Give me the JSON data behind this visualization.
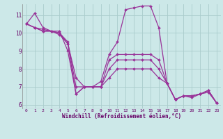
{
  "xlabel": "Windchill (Refroidissement éolien,°C)",
  "bg_color": "#cce8e8",
  "line_color": "#993399",
  "grid_color": "#aacccc",
  "axis_color": "#660066",
  "xlim": [
    -0.5,
    23.5
  ],
  "ylim": [
    5.8,
    11.6
  ],
  "xticks": [
    0,
    1,
    2,
    3,
    4,
    5,
    6,
    7,
    8,
    9,
    10,
    11,
    12,
    13,
    14,
    15,
    16,
    17,
    18,
    19,
    20,
    21,
    22,
    23
  ],
  "yticks": [
    6,
    7,
    8,
    9,
    10,
    11
  ],
  "series": [
    [
      10.5,
      11.1,
      10.3,
      10.1,
      10.1,
      9.0,
      6.6,
      7.0,
      7.0,
      7.3,
      8.8,
      9.5,
      11.3,
      11.4,
      11.5,
      11.5,
      10.3,
      7.2,
      6.3,
      6.5,
      6.4,
      6.6,
      6.7,
      6.1
    ],
    [
      10.5,
      10.3,
      10.1,
      10.1,
      10.0,
      9.4,
      6.6,
      7.0,
      7.0,
      7.0,
      8.5,
      8.8,
      8.8,
      8.8,
      8.8,
      8.8,
      8.5,
      7.2,
      6.3,
      6.5,
      6.5,
      6.6,
      6.8,
      6.1
    ],
    [
      10.5,
      10.3,
      10.1,
      10.1,
      9.9,
      9.4,
      7.5,
      7.0,
      7.0,
      7.0,
      8.0,
      8.5,
      8.5,
      8.5,
      8.5,
      8.5,
      8.0,
      7.2,
      6.3,
      6.5,
      6.5,
      6.6,
      6.8,
      6.1
    ],
    [
      10.5,
      10.3,
      10.2,
      10.1,
      10.0,
      9.5,
      7.0,
      7.0,
      7.0,
      7.0,
      7.5,
      8.0,
      8.0,
      8.0,
      8.0,
      8.0,
      7.5,
      7.2,
      6.3,
      6.5,
      6.5,
      6.6,
      6.8,
      6.1
    ]
  ]
}
